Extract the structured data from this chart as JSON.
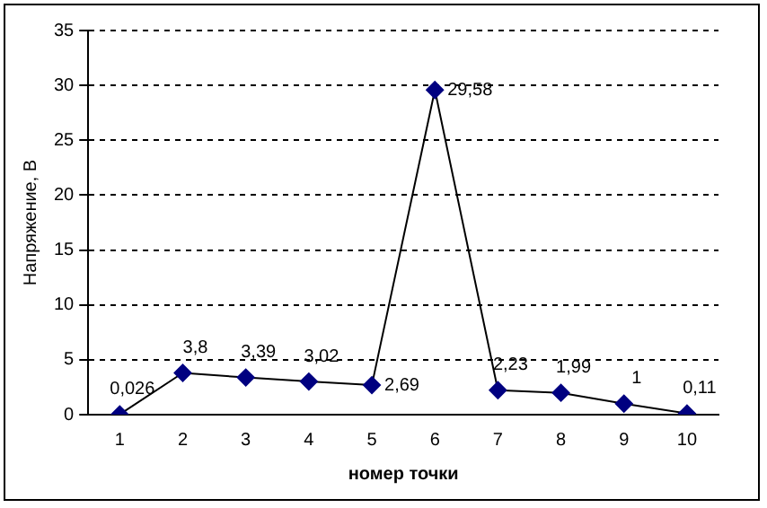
{
  "chart_data": {
    "type": "line",
    "xlabel": "номер точки",
    "ylabel": "Напряжение, В",
    "categories": [
      "1",
      "2",
      "3",
      "4",
      "5",
      "6",
      "7",
      "8",
      "9",
      "10"
    ],
    "series": [
      {
        "color": "#000080",
        "values": [
          0.026,
          3.8,
          3.39,
          3.02,
          2.69,
          29.58,
          2.23,
          1.99,
          1,
          0.11
        ],
        "value_labels": [
          "0,026",
          "3,8",
          "3,39",
          "3,02",
          "2,69",
          "29,58",
          "2,23",
          "1,99",
          "1",
          "0,11"
        ]
      }
    ],
    "ylim": [
      0,
      35
    ],
    "yticks": [
      0,
      5,
      10,
      15,
      20,
      25,
      30,
      35
    ],
    "grid": "y",
    "marker": "diamond",
    "line_style": "solid",
    "legend": false
  }
}
